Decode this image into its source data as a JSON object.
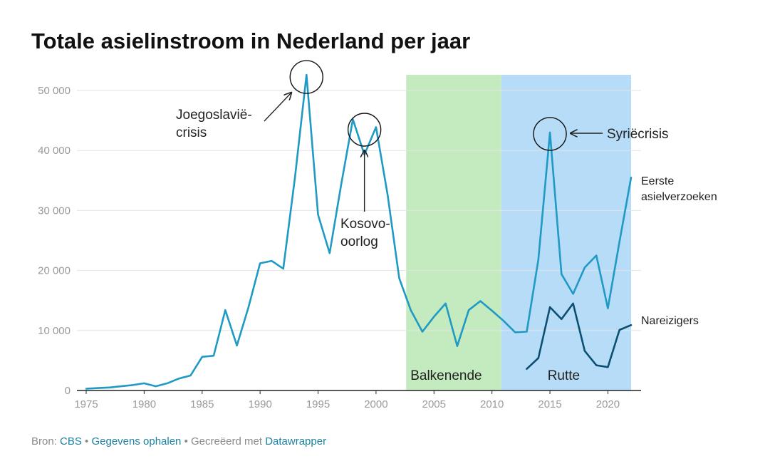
{
  "chart_data": {
    "type": "line",
    "title": "Totale asielinstroom in Nederland per jaar",
    "xlabel": "",
    "ylabel": "",
    "xlim": [
      1975,
      2022
    ],
    "ylim": [
      0,
      50000
    ],
    "x_ticks": [
      1975,
      1980,
      1985,
      1990,
      1995,
      2000,
      2005,
      2010,
      2015,
      2020
    ],
    "y_ticks": [
      0,
      10000,
      20000,
      30000,
      40000,
      50000
    ],
    "x_tick_labels": [
      "1975",
      "1980",
      "1985",
      "1990",
      "1995",
      "2000",
      "2005",
      "2010",
      "2015",
      "2020"
    ],
    "y_tick_labels": [
      "0",
      "10 000",
      "20 000",
      "30 000",
      "40 000",
      "50 000"
    ],
    "grid": "horizontal",
    "colors": {
      "eerste": "#1f9ac4",
      "nareizigers": "#0b4f72",
      "balkenende": "#c4ebbf",
      "rutte": "#b6dcf7",
      "axis": "#222222",
      "grid": "#e3e3e3"
    },
    "bands": [
      {
        "label": "Balkenende",
        "from": 2002.6,
        "to": 2010.8
      },
      {
        "label": "Rutte",
        "from": 2010.8,
        "to": 2022
      }
    ],
    "series": [
      {
        "name": "Eerste asielverzoeken",
        "label_lines": [
          "Eerste",
          "asielverzoeken"
        ],
        "x": [
          1975,
          1976,
          1977,
          1978,
          1979,
          1980,
          1981,
          1982,
          1983,
          1984,
          1985,
          1986,
          1987,
          1988,
          1989,
          1990,
          1991,
          1992,
          1993,
          1994,
          1995,
          1996,
          1997,
          1998,
          1999,
          2000,
          2001,
          2002,
          2003,
          2004,
          2005,
          2006,
          2007,
          2008,
          2009,
          2010,
          2011,
          2012,
          2013,
          2014,
          2015,
          2016,
          2017,
          2018,
          2019,
          2020,
          2021,
          2022
        ],
        "values": [
          300,
          400,
          500,
          700,
          900,
          1200,
          700,
          1200,
          2000,
          2500,
          5600,
          5800,
          13400,
          7500,
          13900,
          21200,
          21600,
          20300,
          35400,
          52600,
          29300,
          22900,
          34400,
          45200,
          39300,
          43900,
          32600,
          18700,
          13400,
          9800,
          12300,
          14500,
          7400,
          13400,
          14900,
          13300,
          11600,
          9700,
          9800,
          21800,
          43000,
          19400,
          16100,
          20500,
          22500,
          13700,
          24800,
          35500
        ]
      },
      {
        "name": "Nareizigers",
        "label_lines": [
          "Nareizigers"
        ],
        "x": [
          2013,
          2014,
          2015,
          2016,
          2017,
          2018,
          2019,
          2020,
          2021,
          2022
        ],
        "values": [
          3600,
          5400,
          13900,
          11900,
          14500,
          6600,
          4200,
          3900,
          10100,
          10900
        ]
      }
    ],
    "annotations": [
      {
        "lines": [
          "Joegoslavië-",
          "crisis"
        ],
        "year": 1994,
        "value": 52600
      },
      {
        "lines": [
          "Kosovo-",
          "oorlog"
        ],
        "year": 1999,
        "value": 40500
      },
      {
        "lines": [
          "Syriëcrisis"
        ],
        "year": 2015,
        "value": 43000
      }
    ]
  },
  "footer": {
    "source_prefix": "Bron: ",
    "source_link": "CBS",
    "sep1": " • ",
    "data_link": "Gegevens ophalen",
    "sep2": " • Gecreëerd met ",
    "dw_link": "Datawrapper"
  }
}
